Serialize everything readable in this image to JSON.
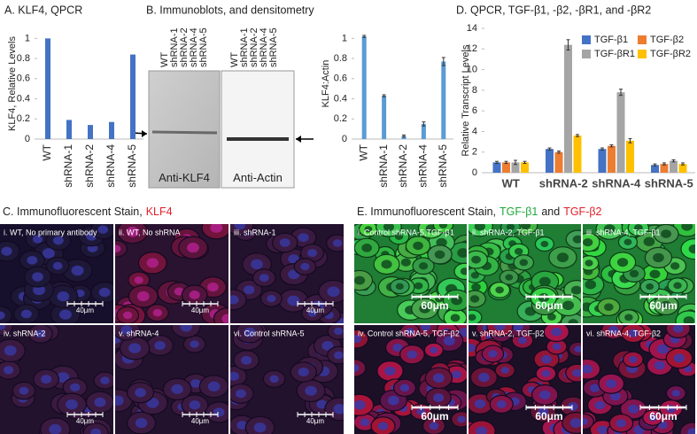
{
  "chart_data": [
    {
      "type": "bar",
      "title": "A. KLF4, QPCR",
      "y_label": "KLF4, Relative Levels",
      "categories": [
        "WT",
        "shRNA-1",
        "shRNA-2",
        "shRNA-4",
        "shRNA-5"
      ],
      "values": [
        1.0,
        0.19,
        0.14,
        0.17,
        0.84
      ],
      "color": "#4472c4",
      "ylim": [
        0,
        1.1
      ],
      "yticks": [
        0,
        0.2,
        0.4,
        0.6,
        0.8,
        1
      ]
    },
    {
      "type": "bar",
      "y_label": "KLF4:Actin",
      "categories": [
        "WT",
        "shRNA-1",
        "shRNA-2",
        "shRNA-4",
        "shRNA-5"
      ],
      "values": [
        1.02,
        0.43,
        0.03,
        0.15,
        0.77
      ],
      "errors": [
        0.01,
        0.01,
        0.01,
        0.02,
        0.04
      ],
      "color": "#5b9bd5",
      "ylim": [
        0,
        1.1
      ],
      "yticks": [
        0,
        0.2,
        0.4,
        0.6,
        0.8,
        1
      ]
    },
    {
      "type": "bar",
      "title": "D. QPCR, TGF-β1, -β2, -βR1, and -βR2",
      "y_label": "Relative Transcript Levels",
      "categories": [
        "WT",
        "shRNA-2",
        "shRNA-4",
        "shRNA-5"
      ],
      "series": [
        {
          "name": "TGF-β1",
          "color": "#4472c4",
          "values": [
            1.0,
            2.3,
            2.3,
            0.75
          ],
          "errors": [
            0.1,
            0.1,
            0.1,
            0.1
          ]
        },
        {
          "name": "TGF-β2",
          "color": "#ed7d31",
          "values": [
            1.0,
            2.0,
            2.6,
            0.85
          ],
          "errors": [
            0.1,
            0.1,
            0.1,
            0.1
          ]
        },
        {
          "name": "TGF-βR1",
          "color": "#a5a5a5",
          "values": [
            1.0,
            12.4,
            7.8,
            1.15
          ],
          "errors": [
            0.2,
            0.5,
            0.3,
            0.1
          ]
        },
        {
          "name": "TGF-βR2",
          "color": "#ffc000",
          "values": [
            1.0,
            3.6,
            3.1,
            0.85
          ],
          "errors": [
            0.1,
            0.1,
            0.2,
            0.1
          ]
        }
      ],
      "ylim": [
        0,
        14
      ],
      "yticks": [
        0,
        2,
        4,
        6,
        8,
        10,
        12,
        14
      ],
      "legend": "upper right"
    }
  ],
  "blots": {
    "title": "B. Immunoblots, and densitometry",
    "lanes_klf4": [
      "WT",
      "shRNA-1",
      "shRNA-2",
      "shRNA-4",
      "shRNA-5"
    ],
    "lanes_actin": [
      "WT",
      "shRNA-1",
      "shRNA-2",
      "shRNA-4",
      "shRNA-5"
    ],
    "klf4_label": "Anti-KLF4",
    "actin_label": "Anti-Actin"
  },
  "panel_c": {
    "title": "C. Immunofluorescent Stain,",
    "stain": "KLF4",
    "images": [
      {
        "label": "i. WT, No primary antibody",
        "scale": "40μm"
      },
      {
        "label": "ii. WT, No shRNA",
        "scale": "40μm"
      },
      {
        "label": "iii. shRNA-1",
        "scale": "40μm"
      },
      {
        "label": "iv. shRNA-2",
        "scale": "40μm"
      },
      {
        "label": "v. shRNA-4",
        "scale": "40μm"
      },
      {
        "label": "vi. Control shRNA-5",
        "scale": "40μm"
      }
    ]
  },
  "panel_e": {
    "title": "E. Immunofluorescent Stain,",
    "stain1": "TGF-β1",
    "joiner": "and",
    "stain2": "TGF-β2",
    "images": [
      {
        "label": "i. Control shRNA-5,TGF-β1",
        "scale": "60μm"
      },
      {
        "label": "ii. shRNA-2, TGF-β1",
        "scale": "60μm"
      },
      {
        "label": "iii. shRNA-4, TGF-β1",
        "scale": "60μm"
      },
      {
        "label": "iv. Control shRNA-5, TGF-β2",
        "scale": "60μm"
      },
      {
        "label": "v. shRNA-2, TGF-β2",
        "scale": "60μm"
      },
      {
        "label": "vi. shRNA-4, TGF-β2",
        "scale": "60μm"
      }
    ]
  }
}
